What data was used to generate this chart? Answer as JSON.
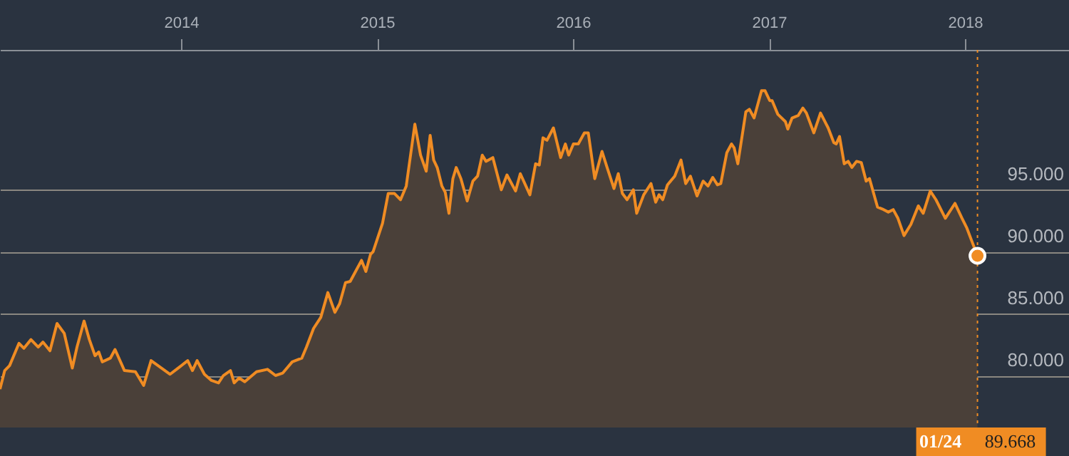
{
  "chart_data": {
    "type": "area",
    "x": [
      2013.076,
      2013.1,
      2013.125,
      2013.173,
      2013.198,
      2013.234,
      2013.271,
      2013.295,
      2013.331,
      2013.367,
      2013.404,
      2013.445,
      2013.469,
      2013.505,
      2013.532,
      2013.561,
      2013.58,
      2013.598,
      2013.639,
      2013.663,
      2013.711,
      2013.767,
      2013.809,
      2013.847,
      2013.9,
      2013.944,
      2013.985,
      2014.034,
      2014.058,
      2014.082,
      2014.119,
      2014.155,
      2014.191,
      2014.216,
      2014.252,
      2014.271,
      2014.296,
      2014.325,
      2014.385,
      2014.441,
      2014.482,
      2014.519,
      2014.567,
      2014.616,
      2014.64,
      2014.676,
      2014.713,
      2014.749,
      2014.785,
      2014.809,
      2014.839,
      2014.863,
      2014.887,
      2014.921,
      2014.943,
      2014.967,
      2014.98,
      2015.028,
      2015.057,
      2015.089,
      2015.12,
      2015.149,
      2015.193,
      2015.222,
      2015.251,
      2015.271,
      2015.289,
      2015.307,
      2015.331,
      2015.348,
      2015.367,
      2015.387,
      2015.404,
      2015.428,
      2015.46,
      2015.489,
      2015.513,
      2015.537,
      2015.556,
      2015.591,
      2015.634,
      2015.663,
      2015.707,
      2015.731,
      2015.78,
      2015.809,
      2015.828,
      2015.847,
      2015.867,
      2015.9,
      2015.937,
      2015.961,
      2015.978,
      2016.002,
      2016.027,
      2016.058,
      2016.078,
      2016.111,
      2016.148,
      2016.172,
      2016.209,
      2016.231,
      2016.252,
      2016.276,
      2016.308,
      2016.325,
      2016.361,
      2016.398,
      2016.422,
      2016.439,
      2016.458,
      2016.482,
      2016.519,
      2016.551,
      2016.575,
      2016.599,
      2016.633,
      2016.664,
      2016.689,
      2016.713,
      2016.737,
      2016.754,
      2016.785,
      2016.809,
      2016.822,
      2016.841,
      2016.882,
      2016.9,
      2016.924,
      2016.962,
      2016.98,
      2017.004,
      2017.016,
      2017.045,
      2017.084,
      2017.096,
      2017.118,
      2017.149,
      2017.173,
      2017.191,
      2017.229,
      2017.263,
      2017.302,
      2017.331,
      2017.343,
      2017.36,
      2017.384,
      2017.404,
      2017.423,
      2017.447,
      2017.471,
      2017.496,
      2017.513,
      2017.554,
      2017.585,
      2017.609,
      2017.634,
      2017.658,
      2017.689,
      2017.724,
      2017.762,
      2017.787,
      2017.823,
      2017.852,
      2017.9,
      2017.949,
      2017.985,
      2018.01,
      2018.034,
      2018.064
    ],
    "series": [
      {
        "color": "#f08c23",
        "values": [
          78.9,
          80.4,
          80.8,
          82.6,
          82.2,
          82.9,
          82.3,
          82.7,
          82.0,
          84.2,
          83.4,
          80.6,
          82.3,
          84.4,
          82.9,
          81.6,
          81.9,
          81.1,
          81.4,
          82.1,
          80.4,
          80.3,
          79.2,
          81.2,
          80.6,
          80.1,
          80.6,
          81.2,
          80.4,
          81.2,
          80.1,
          79.6,
          79.4,
          80.0,
          80.4,
          79.4,
          79.8,
          79.5,
          80.3,
          80.5,
          80.0,
          80.2,
          81.1,
          81.4,
          82.3,
          83.8,
          84.7,
          86.7,
          85.1,
          85.8,
          87.5,
          87.6,
          88.3,
          89.3,
          88.4,
          89.8,
          90.0,
          92.3,
          94.7,
          94.7,
          94.2,
          95.3,
          100.3,
          97.8,
          96.5,
          99.4,
          97.4,
          96.8,
          95.3,
          94.8,
          93.1,
          95.9,
          96.8,
          95.9,
          94.1,
          95.7,
          96.1,
          97.8,
          97.3,
          97.6,
          95.0,
          96.2,
          94.9,
          96.3,
          94.6,
          97.1,
          97.0,
          99.2,
          99.0,
          100.0,
          97.6,
          98.7,
          97.8,
          98.7,
          98.7,
          99.6,
          99.6,
          95.9,
          98.1,
          96.9,
          95.1,
          96.3,
          94.7,
          94.2,
          95.0,
          93.1,
          94.6,
          95.5,
          94.0,
          94.6,
          94.2,
          95.4,
          96.1,
          97.4,
          95.5,
          96.1,
          94.5,
          95.7,
          95.3,
          96.0,
          95.4,
          95.5,
          98.0,
          98.7,
          98.4,
          97.1,
          101.3,
          101.5,
          100.8,
          103.0,
          103.0,
          102.2,
          102.2,
          101.1,
          100.5,
          99.9,
          100.8,
          101.0,
          101.6,
          101.2,
          99.6,
          101.2,
          100.0,
          98.8,
          98.7,
          99.3,
          97.1,
          97.3,
          96.8,
          97.3,
          97.2,
          95.7,
          95.9,
          93.6,
          93.4,
          93.2,
          93.4,
          92.7,
          91.3,
          92.2,
          93.7,
          93.1,
          94.9,
          94.2,
          92.7,
          93.9,
          92.7,
          91.9,
          90.9,
          89.668
        ]
      }
    ],
    "xlim": [
      2013.076,
      2018.531
    ],
    "xticks": [
      2014,
      2015,
      2016,
      2017,
      2018
    ],
    "ylim": [
      75.8,
      106.3
    ],
    "yticks": [
      {
        "value": 80,
        "label": "80.000"
      },
      {
        "value": 85,
        "label": "85.000"
      },
      {
        "value": 90,
        "label": "90.000"
      },
      {
        "value": 95,
        "label": "95.000"
      }
    ],
    "grid": "y",
    "ref_lines": [
      {
        "axis": "x",
        "value": 2018.064,
        "line_style": "dotted",
        "color": "#f08c23"
      }
    ],
    "annotations": [
      "01/24",
      "89.668"
    ]
  }
}
